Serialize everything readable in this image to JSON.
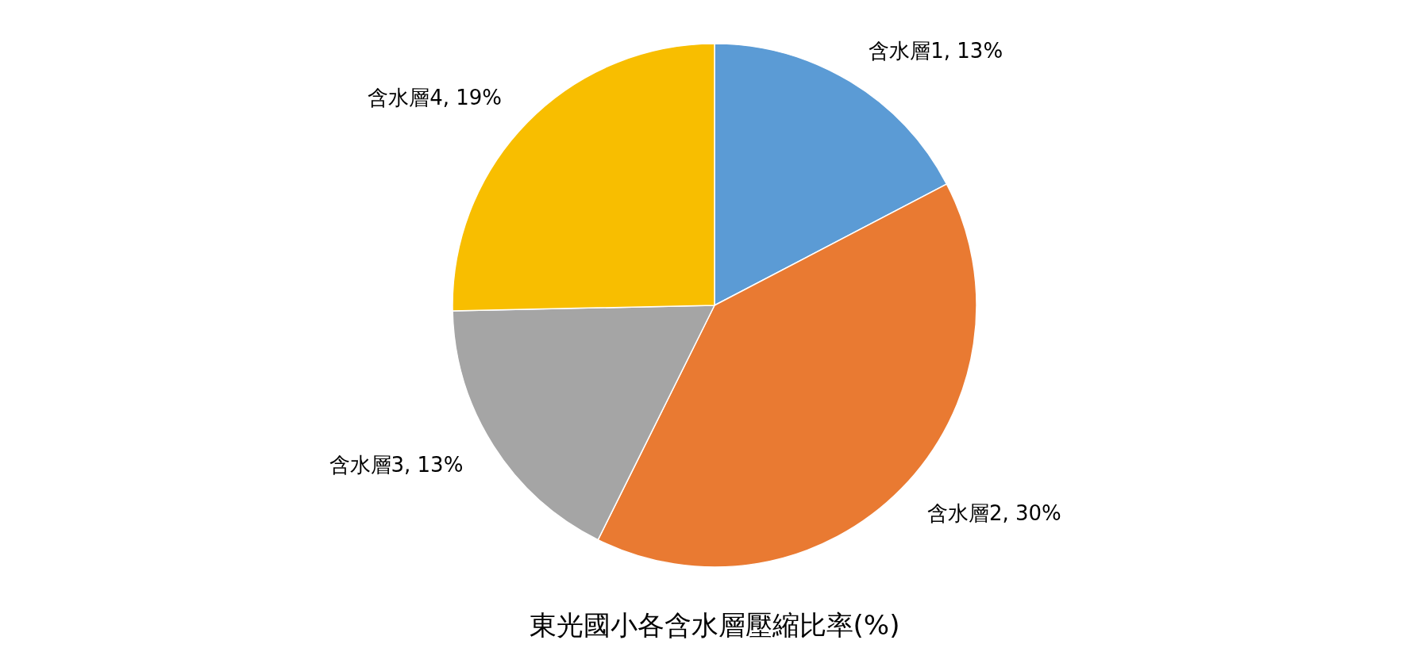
{
  "chart_data": {
    "type": "pie",
    "title": "東光國小各含水層壓縮比率(%)",
    "categories": [
      "含水層1",
      "含水層2",
      "含水層3",
      "含水層4"
    ],
    "values": [
      13,
      30,
      13,
      19
    ],
    "value_labels": [
      "13%",
      "30%",
      "13%",
      "19%"
    ],
    "colors": [
      "#5b9bd5",
      "#e97a32",
      "#a5a5a5",
      "#f8be00"
    ],
    "legend": false
  }
}
